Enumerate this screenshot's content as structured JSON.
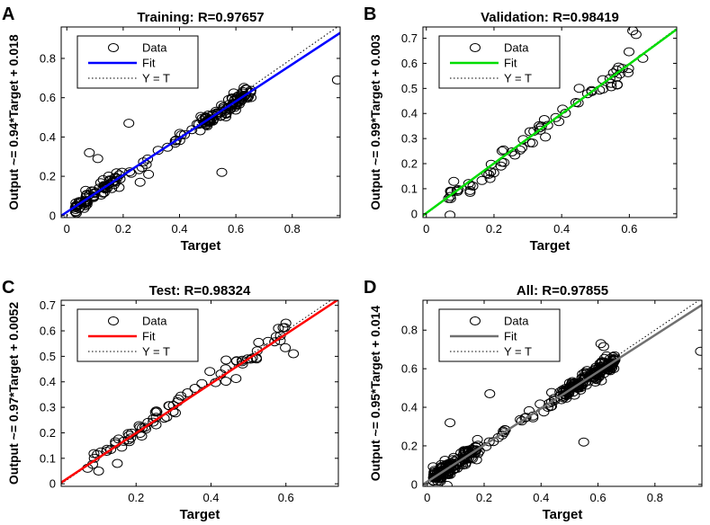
{
  "chart_data": [
    {
      "type": "scatter",
      "panel_letter": "A",
      "title": "Training: R=0.97657",
      "xlabel": "Target",
      "ylabel": "Output ~= 0.94*Target + 0.018",
      "xlim": [
        -0.02,
        0.97
      ],
      "ylim": [
        -0.01,
        0.96
      ],
      "xticks": [
        0,
        0.2,
        0.4,
        0.6,
        0.8
      ],
      "yticks": [
        0,
        0.2,
        0.4,
        0.6,
        0.8
      ],
      "xtick_labels": [
        "0",
        "0.2",
        "0.4",
        "0.6",
        "0.8"
      ],
      "ytick_labels": [
        "0",
        "0.2",
        "0.4",
        "0.6",
        "0.8"
      ],
      "fit": {
        "slope": 0.94,
        "intercept": 0.018,
        "color": "#0000ff"
      },
      "legend": {
        "location": "top-left",
        "entries": [
          "Data",
          "Fit",
          "Y = T"
        ]
      },
      "points": {
        "seed": 11,
        "x_range": [
          0.03,
          0.66
        ],
        "density": "cluster-low",
        "count": 190,
        "noise": 0.02,
        "outliers": [
          [
            0.96,
            0.69
          ],
          [
            0.55,
            0.22
          ],
          [
            0.22,
            0.47
          ],
          [
            0.08,
            0.32
          ],
          [
            0.11,
            0.29
          ],
          [
            0.29,
            0.21
          ],
          [
            0.26,
            0.17
          ]
        ]
      }
    },
    {
      "type": "scatter",
      "panel_letter": "B",
      "title": "Validation: R=0.98419",
      "xlabel": "Target",
      "ylabel": "Output ~= 0.99*Target + 0.003",
      "xlim": [
        -0.01,
        0.74
      ],
      "ylim": [
        -0.015,
        0.745
      ],
      "xticks": [
        0,
        0.2,
        0.4,
        0.6
      ],
      "yticks": [
        0,
        0.1,
        0.2,
        0.3,
        0.4,
        0.5,
        0.6,
        0.7
      ],
      "xtick_labels": [
        "0",
        "0.2",
        "0.4",
        "0.6"
      ],
      "ytick_labels": [
        "0",
        "0.1",
        "0.2",
        "0.3",
        "0.4",
        "0.5",
        "0.6",
        "0.7"
      ],
      "fit": {
        "slope": 0.99,
        "intercept": 0.003,
        "color": "#00dd00"
      },
      "legend": {
        "location": "top-left",
        "entries": [
          "Data",
          "Fit",
          "Y = T"
        ]
      },
      "points": {
        "seed": 23,
        "x_range": [
          0.05,
          0.6
        ],
        "density": "uniform",
        "count": 70,
        "noise": 0.022,
        "outliers": [
          [
            0.61,
            0.73
          ],
          [
            0.62,
            0.715
          ],
          [
            0.07,
            -0.005
          ],
          [
            0.64,
            0.62
          ]
        ]
      }
    },
    {
      "type": "scatter",
      "panel_letter": "C",
      "title": "Test: R=0.98324",
      "xlabel": "Target",
      "ylabel": "Output ~= 0.97*Target + 0.0052",
      "xlim": [
        0,
        0.74
      ],
      "ylim": [
        -0.01,
        0.72
      ],
      "xticks": [
        0.2,
        0.4,
        0.6
      ],
      "yticks": [
        0,
        0.1,
        0.2,
        0.3,
        0.4,
        0.5,
        0.6,
        0.7
      ],
      "xtick_labels": [
        "0.2",
        "0.4",
        "0.6"
      ],
      "ytick_labels": [
        "0",
        "0.1",
        "0.2",
        "0.3",
        "0.4",
        "0.5",
        "0.6",
        "0.7"
      ],
      "fit": {
        "slope": 0.97,
        "intercept": 0.0052,
        "color": "#ff0000"
      },
      "legend": {
        "location": "top-left",
        "entries": [
          "Data",
          "Fit",
          "Y = T"
        ]
      },
      "points": {
        "seed": 37,
        "x_range": [
          0.05,
          0.6
        ],
        "density": "uniform",
        "count": 75,
        "noise": 0.022,
        "outliers": [
          [
            0.6,
            0.63
          ],
          [
            0.58,
            0.61
          ],
          [
            0.62,
            0.51
          ],
          [
            0.1,
            0.05
          ],
          [
            0.15,
            0.08
          ]
        ]
      }
    },
    {
      "type": "scatter",
      "panel_letter": "D",
      "title": "All: R=0.97855",
      "xlabel": "Target",
      "ylabel": "Output ~= 0.95*Target + 0.014",
      "xlim": [
        -0.015,
        0.965
      ],
      "ylim": [
        -0.01,
        0.955
      ],
      "xticks": [
        0,
        0.2,
        0.4,
        0.6,
        0.8
      ],
      "yticks": [
        0,
        0.2,
        0.4,
        0.6,
        0.8
      ],
      "xtick_labels": [
        "0",
        "0.2",
        "0.4",
        "0.6",
        "0.8"
      ],
      "ytick_labels": [
        "0",
        "0.2",
        "0.4",
        "0.6",
        "0.8"
      ],
      "fit": {
        "slope": 0.95,
        "intercept": 0.014,
        "color": "#707070"
      },
      "legend": {
        "location": "top-left",
        "entries": [
          "Data",
          "Fit",
          "Y = T"
        ]
      },
      "points": {
        "seed": 53,
        "x_range": [
          0.02,
          0.66
        ],
        "density": "cluster-low",
        "count": 330,
        "noise": 0.022,
        "outliers": [
          [
            0.96,
            0.69
          ],
          [
            0.55,
            0.22
          ],
          [
            0.22,
            0.47
          ],
          [
            0.61,
            0.73
          ],
          [
            0.62,
            0.715
          ],
          [
            0.08,
            0.32
          ],
          [
            0.07,
            -0.005
          ]
        ]
      }
    }
  ]
}
